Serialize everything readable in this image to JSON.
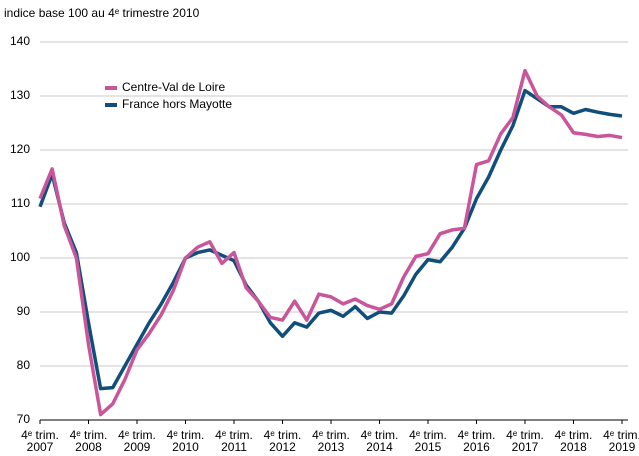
{
  "chart_data": {
    "type": "line",
    "title": "indice base 100 au 4ᵉ trimestre 2010",
    "categories": [
      "4ᵉ trim. 2007",
      null,
      null,
      null,
      "4ᵉ trim. 2008",
      null,
      null,
      null,
      "4ᵉ trim. 2009",
      null,
      null,
      null,
      "4ᵉ trim. 2010",
      null,
      null,
      null,
      "4ᵉ trim. 2011",
      null,
      null,
      null,
      "4ᵉ trim. 2012",
      null,
      null,
      null,
      "4ᵉ trim. 2013",
      null,
      null,
      null,
      "4ᵉ trim. 2014",
      null,
      null,
      null,
      "4ᵉ trim. 2015",
      null,
      null,
      null,
      "4ᵉ trim. 2016",
      null,
      null,
      null,
      "4ᵉ trim. 2017",
      null,
      null,
      null,
      "4ᵉ trim. 2018",
      null,
      null,
      null,
      "4ᵉ trim. 2019"
    ],
    "series": [
      {
        "name": "Centre-Val de Loire",
        "color": "#c9559b",
        "values": [
          111,
          116.5,
          106,
          100,
          84,
          71,
          73,
          77.5,
          83,
          86,
          89.5,
          94,
          100,
          102,
          103,
          99,
          101,
          94.5,
          92,
          89,
          88.5,
          92,
          88.5,
          93.3,
          92.8,
          91.5,
          92.4,
          91.2,
          90.5,
          91.5,
          96.5,
          100.3,
          100.8,
          104.5,
          105.2,
          105.5,
          117.3,
          118,
          123,
          126,
          134.7,
          130,
          128,
          126.5,
          123.2,
          122.9,
          122.5,
          122.7,
          122.3
        ]
      },
      {
        "name": "France hors Mayotte",
        "color": "#104e7c",
        "values": [
          109.5,
          115.5,
          106.5,
          101,
          88,
          75.8,
          76,
          80,
          84,
          88,
          91.5,
          95.5,
          100,
          101,
          101.5,
          100.5,
          99.5,
          95,
          92,
          88,
          85.5,
          88,
          87.2,
          89.8,
          90.3,
          89.2,
          91,
          88.8,
          90,
          89.8,
          93,
          97,
          99.7,
          99.3,
          102,
          105.5,
          111,
          115,
          120,
          124.5,
          131,
          129.5,
          128,
          128,
          126.8,
          127.5,
          127,
          126.6,
          126.3
        ]
      }
    ],
    "ylim": [
      70,
      140
    ],
    "yticks": [
      70,
      80,
      90,
      100,
      110,
      120,
      130,
      140
    ],
    "grid": true,
    "legend": "upper left"
  }
}
